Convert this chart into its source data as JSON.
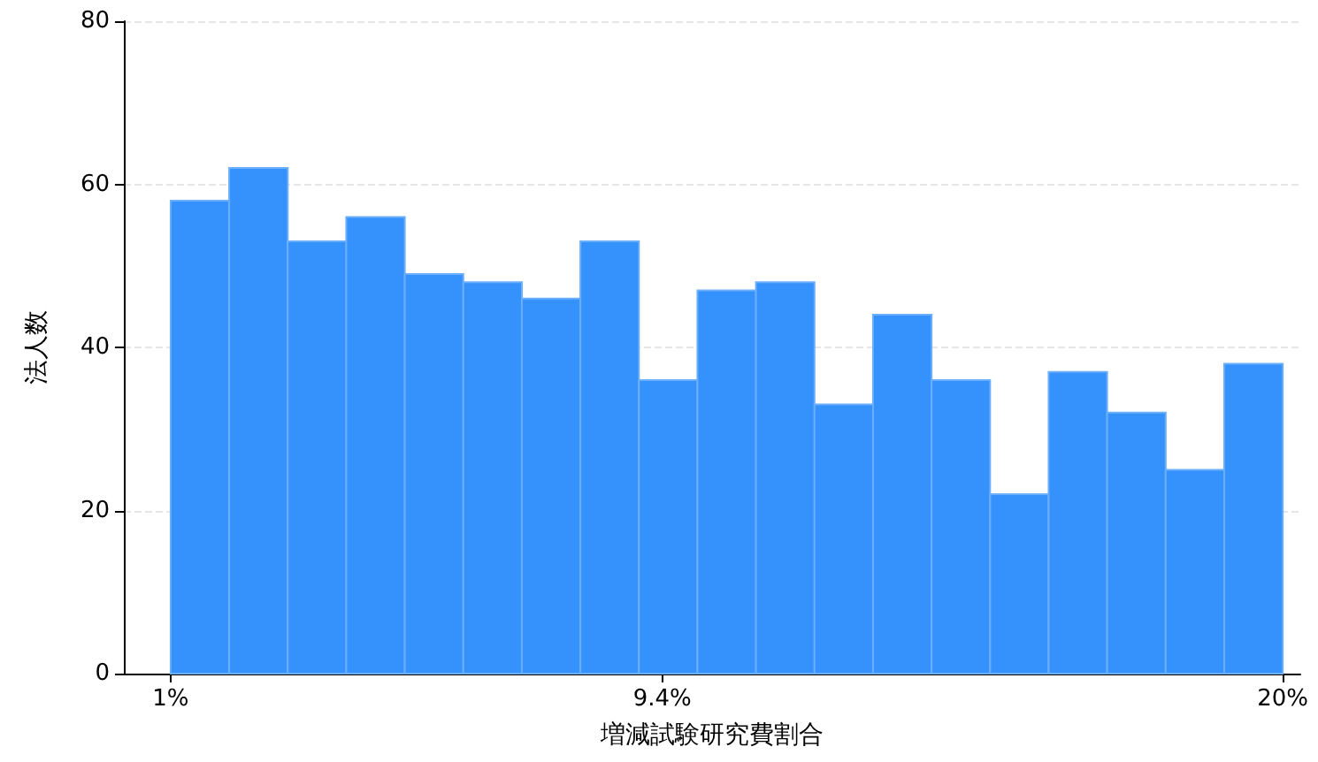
{
  "chart_data": {
    "type": "histogram",
    "xlabel": "増減試験研究費割合",
    "ylabel": "法人数",
    "bins": [
      1,
      2,
      3,
      4,
      5,
      6,
      7,
      8,
      9,
      10,
      11,
      12,
      13,
      14,
      15,
      16,
      17,
      18,
      19,
      20
    ],
    "values": [
      58,
      62,
      53,
      56,
      49,
      48,
      46,
      53,
      36,
      47,
      48,
      33,
      44,
      36,
      22,
      37,
      32,
      25,
      38
    ],
    "color": "#3592fd",
    "xlim": [
      0.2,
      20.3
    ],
    "xticks": [
      {
        "value": 1,
        "label": "1%"
      },
      {
        "value": 9.4,
        "label": "9.4%"
      },
      {
        "value": 20,
        "label": "20%"
      }
    ],
    "ylim": [
      0,
      80
    ],
    "yticks": [
      0,
      20,
      40,
      60,
      80
    ],
    "grid": "y"
  }
}
